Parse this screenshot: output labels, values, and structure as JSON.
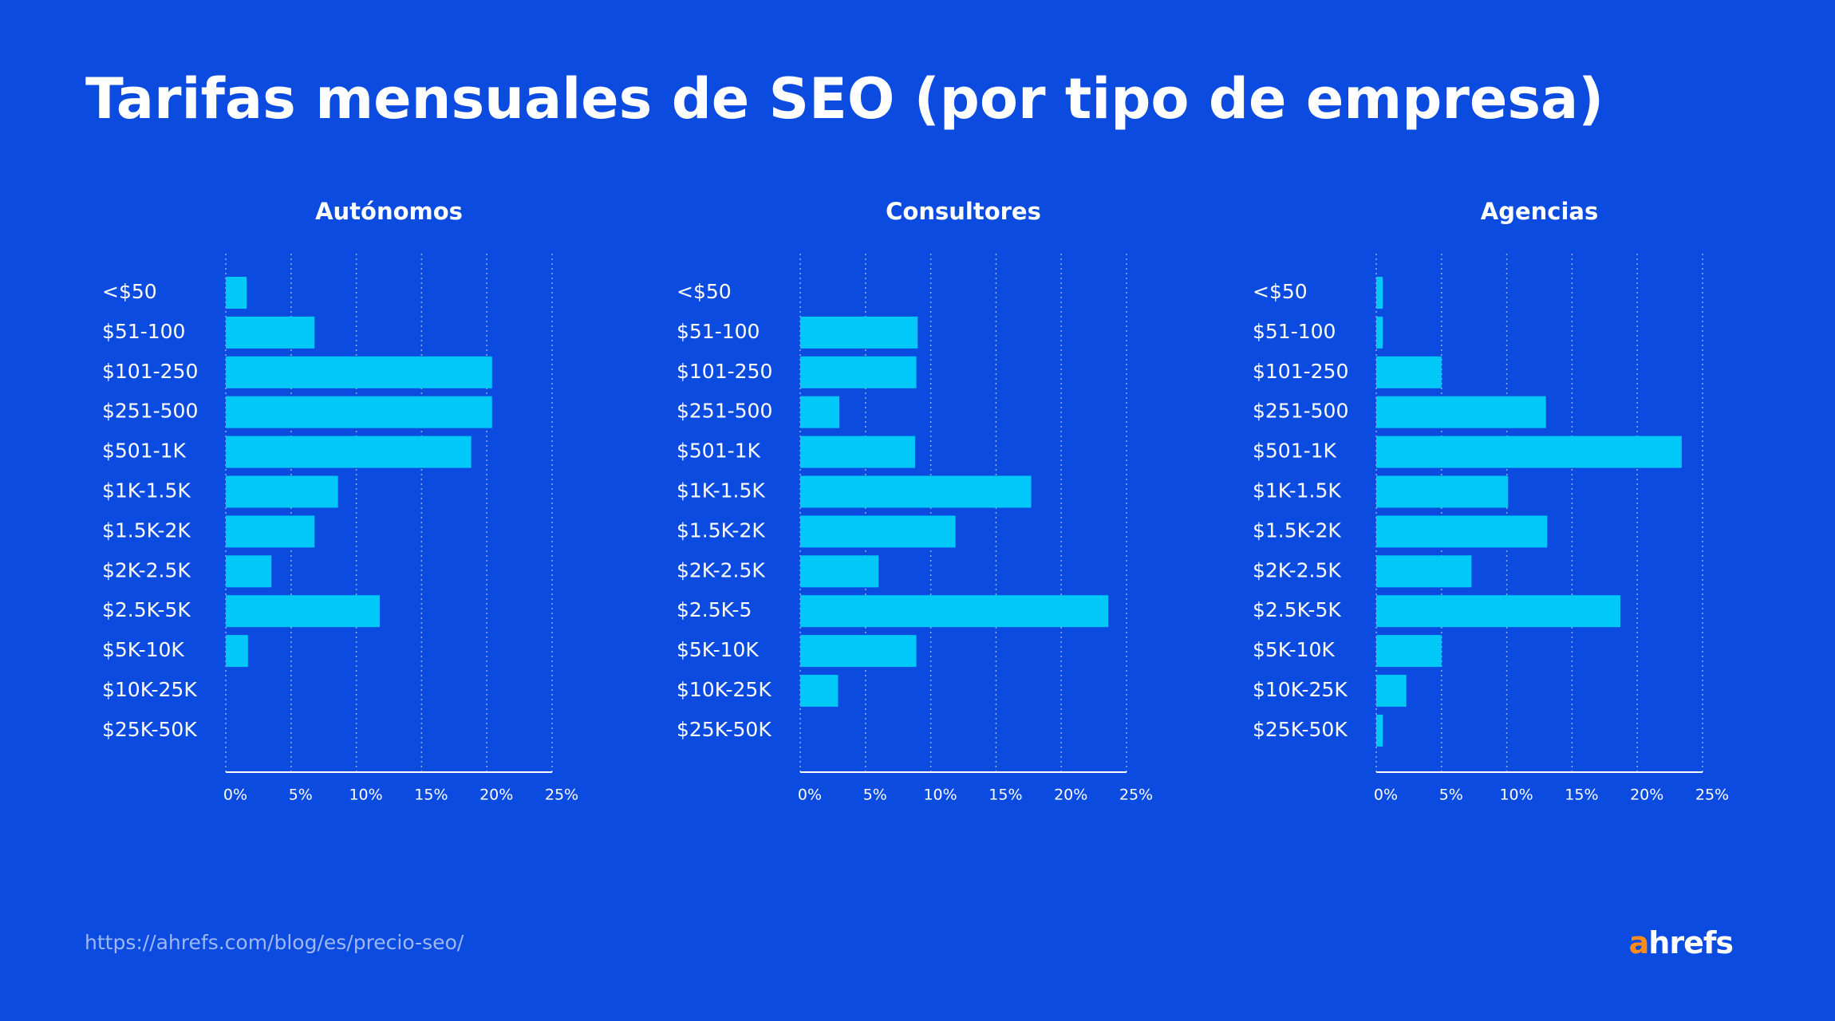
{
  "title": "Tarifas mensuales de SEO (por tipo de empresa)",
  "source": "https://ahrefs.com/blog/es/precio-seo/",
  "brand": "ahrefs",
  "chart_data": [
    {
      "type": "bar",
      "title": "Autónomos",
      "color": "#00c8f8",
      "grid": true,
      "categories": [
        "<$50",
        "$51-100",
        "$101-250",
        "$251-500",
        "$501-1K",
        "$1K-1.5K",
        "$1.5K-2K",
        "$2K-2.5K",
        "$2.5K-5K",
        "$5K-10K",
        "$10K-25K",
        "$25K-50K"
      ],
      "values": [
        1.6,
        6.8,
        20.4,
        20.4,
        18.8,
        8.6,
        6.8,
        3.5,
        11.8,
        1.7,
        0,
        0
      ],
      "xlim": [
        0,
        25
      ],
      "xticks": [
        {
          "value": 0,
          "label": "0%"
        },
        {
          "value": 5,
          "label": "5%"
        },
        {
          "value": 10,
          "label": "10%"
        },
        {
          "value": 15,
          "label": "15%"
        },
        {
          "value": 20,
          "label": "20%"
        },
        {
          "value": 25,
          "label": "25%"
        }
      ]
    },
    {
      "type": "bar",
      "title": "Consultores",
      "color": "#00c8f8",
      "grid": true,
      "categories": [
        "<$50",
        "$51-100",
        "$101-250",
        "$251-500",
        "$501-1K",
        "$1K-1.5K",
        "$1.5K-2K",
        "$2K-2.5K",
        "$2.5K-5",
        "$5K-10K",
        "$10K-25K",
        "$25K-50K"
      ],
      "values": [
        0,
        9.0,
        8.9,
        3.0,
        8.8,
        17.7,
        11.9,
        6.0,
        23.6,
        8.9,
        2.9,
        0
      ],
      "xlim": [
        0,
        25
      ],
      "xticks": [
        {
          "value": 0,
          "label": "0%"
        },
        {
          "value": 5,
          "label": "5%"
        },
        {
          "value": 10,
          "label": "10%"
        },
        {
          "value": 15,
          "label": "15%"
        },
        {
          "value": 20,
          "label": "20%"
        },
        {
          "value": 25,
          "label": "25%"
        }
      ]
    },
    {
      "type": "bar",
      "title": "Agencias",
      "color": "#00c8f8",
      "grid": true,
      "categories": [
        "<$50",
        "$51-100",
        "$101-250",
        "$251-500",
        "$501-1K",
        "$1K-1.5K",
        "$1.5K-2K",
        "$2K-2.5K",
        "$2.5K-5K",
        "$5K-10K",
        "$10K-25K",
        "$25K-50K"
      ],
      "values": [
        0.5,
        0.5,
        5.0,
        13.0,
        23.4,
        10.1,
        13.1,
        7.3,
        18.7,
        5.0,
        2.3,
        0.5
      ],
      "xlim": [
        0,
        25
      ],
      "xticks": [
        {
          "value": 0,
          "label": "0%"
        },
        {
          "value": 5,
          "label": "5%"
        },
        {
          "value": 10,
          "label": "10%"
        },
        {
          "value": 15,
          "label": "15%"
        },
        {
          "value": 20,
          "label": "20%"
        },
        {
          "value": 25,
          "label": "25%"
        }
      ]
    }
  ]
}
